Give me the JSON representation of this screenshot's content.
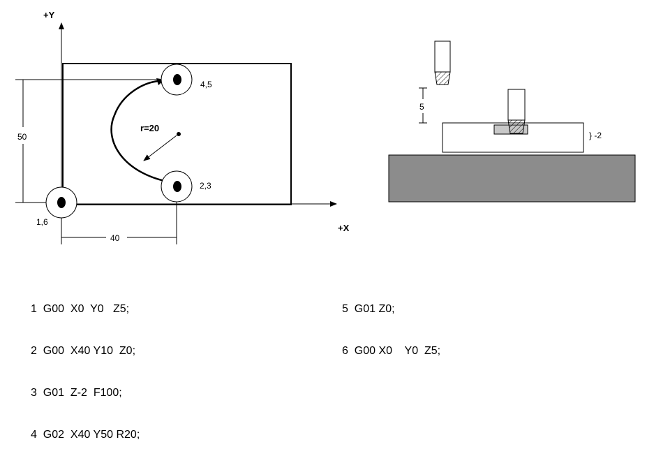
{
  "top_view": {
    "y_axis_label": "+Y",
    "x_axis_label": "+X",
    "height_dim": "50",
    "width_dim": "40",
    "radius_label": "r=20",
    "point_labels": {
      "start": "1,6",
      "lower": "2,3",
      "upper": "4,5"
    }
  },
  "side_view": {
    "approach_dim": "5",
    "depth_dim": "} -2"
  },
  "program": {
    "left": [
      "1  G00  X0  Y0   Z5;",
      "2  G00  X40 Y10  Z0;",
      "3  G01  Z-2  F100;",
      "4  G02  X40 Y50 R20;"
    ],
    "right": [
      "5  G01 Z0;",
      "6  G00 X0    Y0  Z5;"
    ]
  },
  "colors": {
    "table_fill": "#8c8c8c",
    "cut_fill": "#c8c8c8",
    "line": "#000000"
  }
}
